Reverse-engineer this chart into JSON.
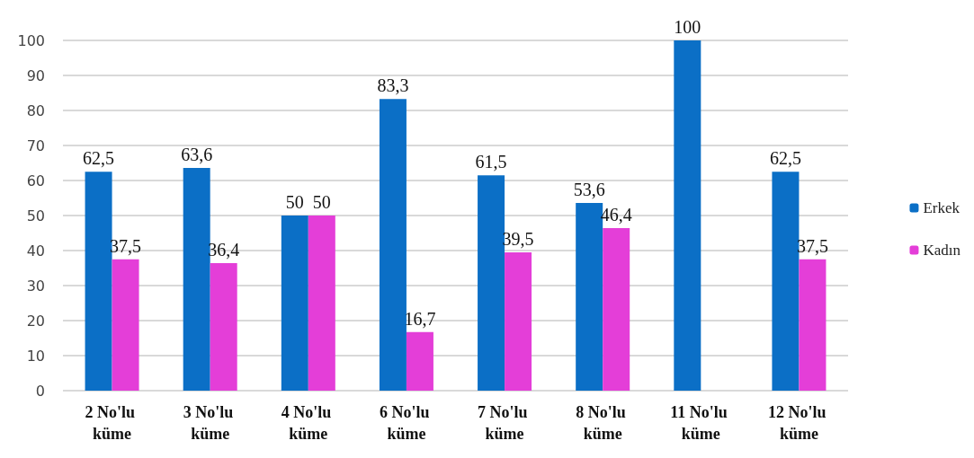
{
  "chart_data": {
    "type": "bar",
    "categories": [
      "2 No'lu küme",
      "3 No'lu küme",
      "4 No'lu küme",
      "6 No'lu küme",
      "7 No'lu küme",
      "8 No'lu küme",
      "11 No'lu küme",
      "12 No'lu küme"
    ],
    "series": [
      {
        "name": "Erkek",
        "color": "#0b6fc6",
        "values": [
          62.5,
          63.6,
          50,
          83.3,
          61.5,
          53.6,
          100,
          62.5
        ],
        "value_labels": [
          "62,5",
          "63,6",
          "50",
          "83,3",
          "61,5",
          "53,6",
          "100",
          "62,5"
        ]
      },
      {
        "name": "Kadın",
        "color": "#e43ed8",
        "values": [
          37.5,
          36.4,
          50,
          16.7,
          39.5,
          46.4,
          null,
          37.5
        ],
        "value_labels": [
          "37,5",
          "36,4",
          "50",
          "16,7",
          "39,5",
          "46,4",
          null,
          "37,5"
        ]
      }
    ],
    "ylim": [
      0,
      100
    ],
    "yticks": [
      0,
      10,
      20,
      30,
      40,
      50,
      60,
      70,
      80,
      90,
      100
    ],
    "grid": "y",
    "legend": "right"
  }
}
